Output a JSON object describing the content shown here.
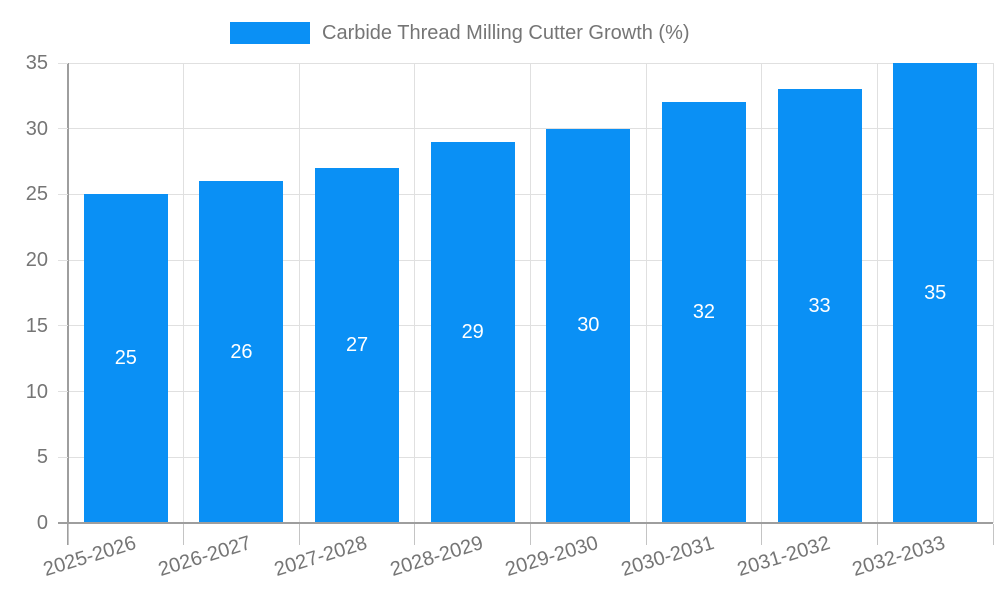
{
  "legend": {
    "label": "Carbide Thread Milling Cutter Growth (%)"
  },
  "colors": {
    "bar": "#0a90f5",
    "grid": "#e0e0e0",
    "axis": "#9e9e9e",
    "bottom_tick": "#c4c4c4",
    "text": "#757575",
    "value_label": "#ffffff",
    "background": "#ffffff"
  },
  "chart_data": {
    "type": "bar",
    "title": "Carbide Thread Milling Cutter Growth (%)",
    "categories": [
      "2025-2026",
      "2026-2027",
      "2027-2028",
      "2028-2029",
      "2029-2030",
      "2030-2031",
      "2031-2032",
      "2032-2033"
    ],
    "series": [
      {
        "name": "Carbide Thread Milling Cutter Growth (%)",
        "values": [
          25,
          26,
          27,
          29,
          30,
          32,
          33,
          35
        ]
      }
    ],
    "values": [
      25,
      26,
      27,
      29,
      30,
      32,
      33,
      35
    ],
    "bar_labels": [
      25,
      26,
      27,
      29,
      30,
      32,
      33,
      35
    ],
    "xlabel": "",
    "ylabel": "",
    "ylim": [
      0,
      35
    ],
    "yticks": [
      0,
      5,
      10,
      15,
      20,
      25,
      30,
      35
    ],
    "grid": true,
    "legend_position": "top",
    "x_tick_rotation_deg": -17
  }
}
